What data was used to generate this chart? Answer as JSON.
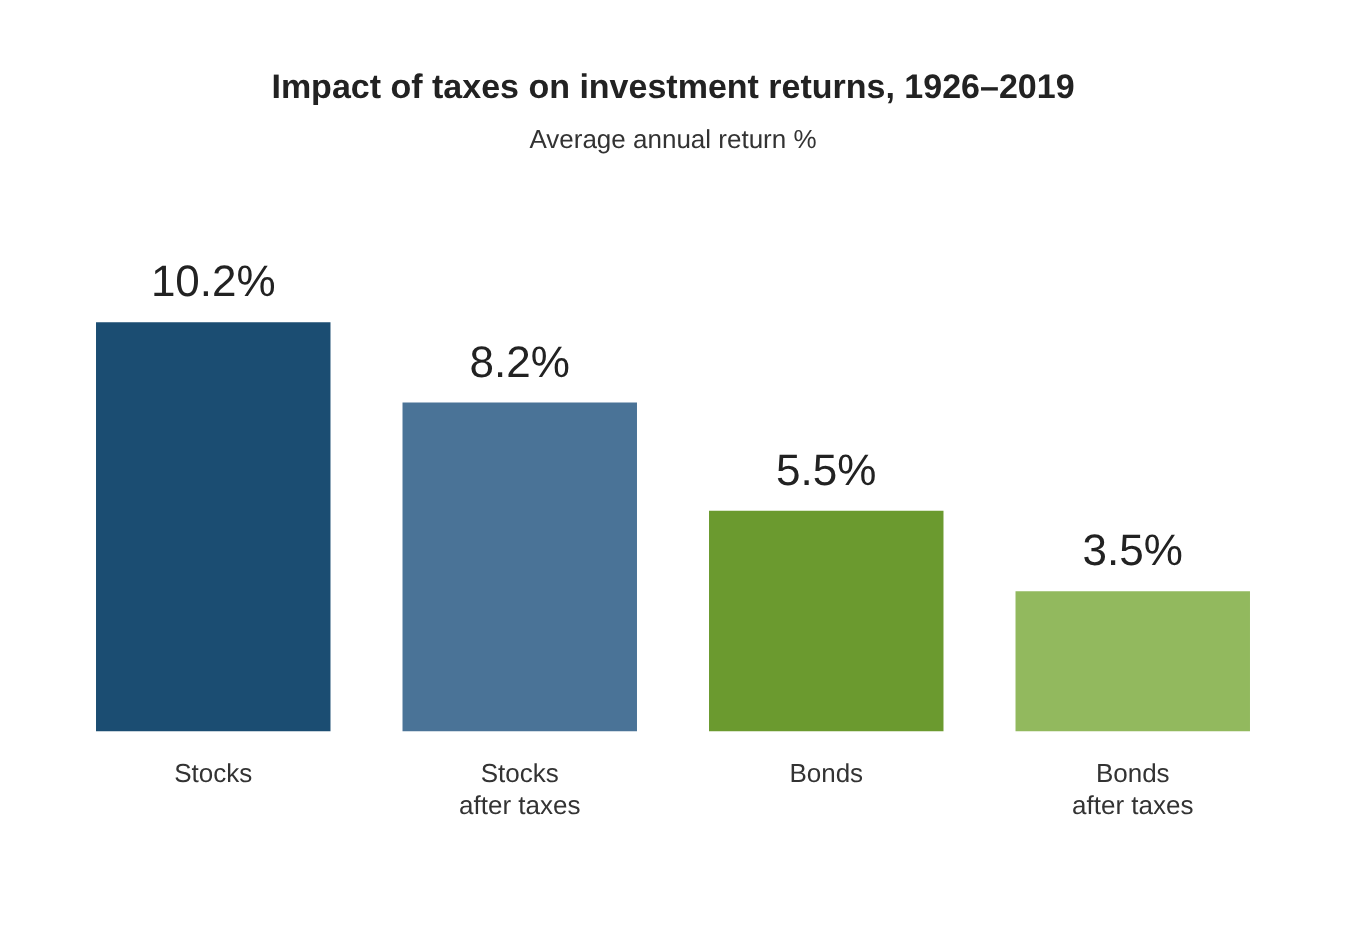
{
  "chart_data": {
    "type": "bar",
    "title": "Impact of taxes on investment returns, 1926–2019",
    "subtitle": "Average annual return %",
    "categories": [
      "Stocks",
      "Stocks\nafter taxes",
      "Bonds",
      "Bonds\nafter taxes"
    ],
    "values": [
      10.2,
      8.2,
      5.5,
      3.5
    ],
    "colors": [
      "#1b4d72",
      "#4a7397",
      "#6b9a2f",
      "#92b95e"
    ],
    "value_labels": [
      "10.2%",
      "8.2%",
      "5.5%",
      "3.5%"
    ],
    "tick_labels": "x",
    "grid": false,
    "legend": false
  }
}
